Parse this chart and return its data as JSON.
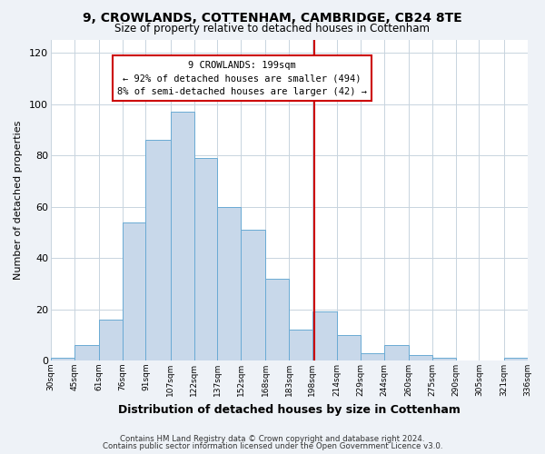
{
  "title": "9, CROWLANDS, COTTENHAM, CAMBRIDGE, CB24 8TE",
  "subtitle": "Size of property relative to detached houses in Cottenham",
  "xlabel": "Distribution of detached houses by size in Cottenham",
  "ylabel": "Number of detached properties",
  "footnote1": "Contains HM Land Registry data © Crown copyright and database right 2024.",
  "footnote2": "Contains public sector information licensed under the Open Government Licence v3.0.",
  "bar_edges": [
    30,
    45,
    61,
    76,
    91,
    107,
    122,
    137,
    152,
    168,
    183,
    198,
    214,
    229,
    244,
    260,
    275,
    290,
    305,
    321,
    336
  ],
  "bar_heights": [
    1,
    6,
    16,
    54,
    86,
    97,
    79,
    60,
    51,
    32,
    12,
    19,
    10,
    3,
    6,
    2,
    1,
    0,
    0,
    1
  ],
  "bar_color": "#c8d8ea",
  "bar_edgecolor": "#6aaad4",
  "vline_x": 199,
  "vline_color": "#cc0000",
  "annotation_title": "9 CROWLANDS: 199sqm",
  "annotation_line1": "← 92% of detached houses are smaller (494)",
  "annotation_line2": "8% of semi-detached houses are larger (42) →",
  "ylim": [
    0,
    125
  ],
  "yticks": [
    0,
    20,
    40,
    60,
    80,
    100,
    120
  ],
  "tick_labels": [
    "30sqm",
    "45sqm",
    "61sqm",
    "76sqm",
    "91sqm",
    "107sqm",
    "122sqm",
    "137sqm",
    "152sqm",
    "168sqm",
    "183sqm",
    "198sqm",
    "214sqm",
    "229sqm",
    "244sqm",
    "260sqm",
    "275sqm",
    "290sqm",
    "305sqm",
    "321sqm",
    "336sqm"
  ],
  "bg_color": "#eef2f7",
  "plot_bg_color": "#ffffff",
  "grid_color": "#c8d4de"
}
